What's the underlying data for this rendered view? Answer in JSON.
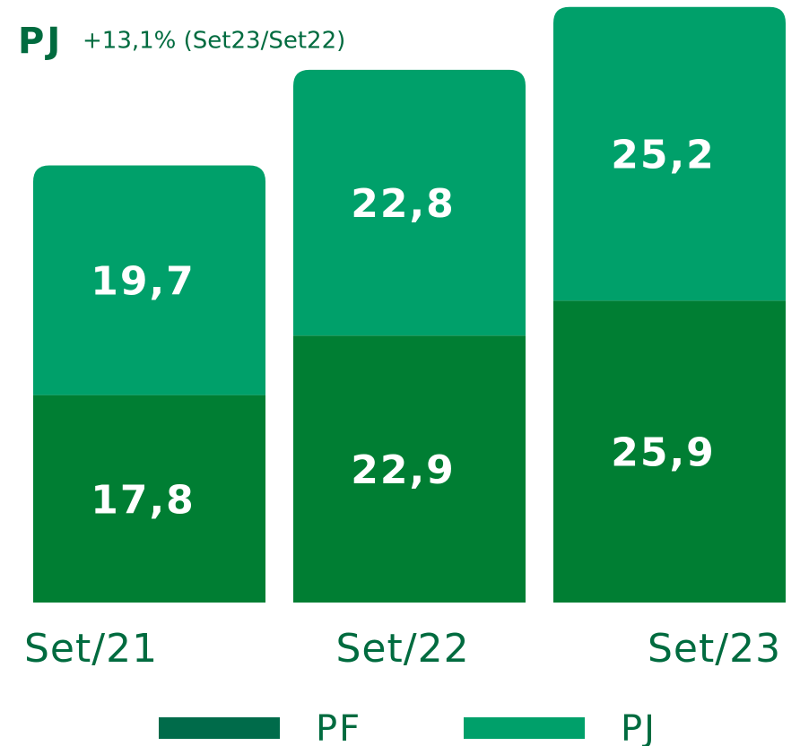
{
  "chart_data": {
    "type": "stacked-bar",
    "title": "PJ",
    "subtitle": "+13,1% (Set23/Set22)",
    "categories": [
      "Set/21",
      "Set/22",
      "Set/23"
    ],
    "series": [
      {
        "name": "PF",
        "color": "#007e33",
        "values": [
          17.8,
          22.9,
          25.9
        ],
        "value_labels": [
          "17,8",
          "22,9",
          "25,9"
        ]
      },
      {
        "name": "PJ",
        "color": "#00a06a",
        "values": [
          19.7,
          22.8,
          25.2
        ],
        "value_labels": [
          "19,7",
          "22,8",
          "25,2"
        ]
      }
    ]
  }
}
